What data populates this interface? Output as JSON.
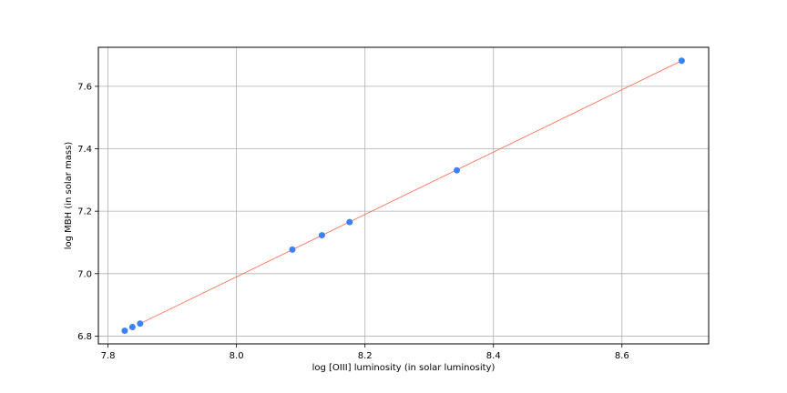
{
  "chart_data": {
    "type": "scatter",
    "title": "",
    "xlabel": "log [OIII] luminosity (in solar luminosity)",
    "ylabel": "log MBH (in solar mass)",
    "xlim": [
      7.785,
      8.735
    ],
    "ylim": [
      6.775,
      7.725
    ],
    "xticks": [
      7.8,
      8.0,
      8.2,
      8.4,
      8.6
    ],
    "xtick_labels": [
      "7.8",
      "8.0",
      "8.2",
      "8.4",
      "8.6"
    ],
    "yticks": [
      6.8,
      7.0,
      7.2,
      7.4,
      7.6
    ],
    "ytick_labels": [
      "6.8",
      "7.0",
      "7.2",
      "7.4",
      "7.6"
    ],
    "grid": true,
    "series": [
      {
        "kind": "points",
        "color": "#3b82f6",
        "x": [
          7.826,
          7.838,
          7.85,
          8.087,
          8.133,
          8.176,
          8.343,
          8.693
        ],
        "y": [
          6.817,
          6.829,
          6.84,
          7.077,
          7.123,
          7.165,
          7.331,
          7.682
        ]
      },
      {
        "kind": "line",
        "color": "#ff6347",
        "x": [
          7.85,
          8.693
        ],
        "y": [
          6.84,
          7.682
        ]
      }
    ]
  }
}
